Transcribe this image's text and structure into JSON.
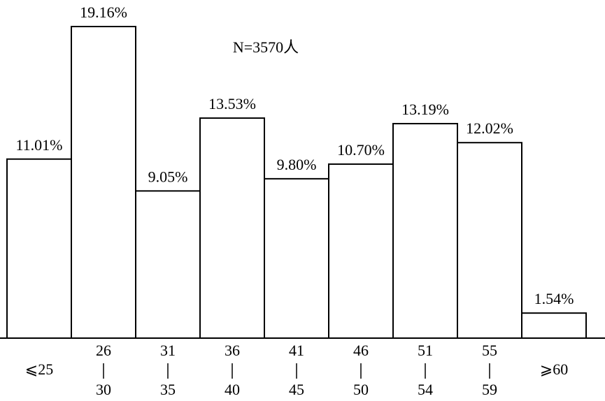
{
  "chart_data": {
    "type": "bar",
    "annotation": "N=3570人",
    "categories": [
      [
        "⩽25"
      ],
      [
        "26",
        "30"
      ],
      [
        "31",
        "35"
      ],
      [
        "36",
        "40"
      ],
      [
        "41",
        "45"
      ],
      [
        "46",
        "50"
      ],
      [
        "51",
        "54"
      ],
      [
        "55",
        "59"
      ],
      [
        "⩾60"
      ]
    ],
    "values": [
      11.01,
      19.16,
      9.05,
      13.53,
      9.8,
      10.7,
      13.19,
      12.02,
      1.54
    ],
    "value_labels": [
      "11.01%",
      "19.16%",
      "9.05%",
      "13.53%",
      "9.80%",
      "10.70%",
      "13.19%",
      "12.02%",
      "1.54%"
    ],
    "color": "#000000"
  }
}
